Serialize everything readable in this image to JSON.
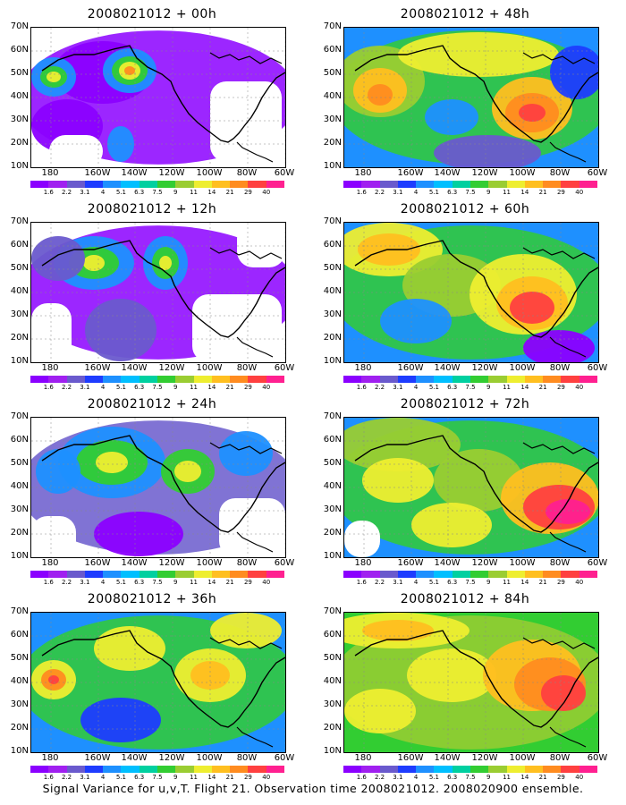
{
  "caption": "Signal Variance for u,v,T. Flight 21. Observation time 2008021012. 2008020900 ensemble.",
  "lat_labels": [
    "70N",
    "60N",
    "50N",
    "40N",
    "30N",
    "20N",
    "10N"
  ],
  "lon_labels": [
    "180",
    "160W",
    "140W",
    "120W",
    "100W",
    "80W",
    "60W"
  ],
  "colorbar": {
    "labels": [
      "1.6",
      "2.2",
      "3.1",
      "4",
      "5.1",
      "6.3",
      "7.5",
      "9",
      "11",
      "14",
      "21",
      "29",
      "40"
    ],
    "colors": [
      "#8b00ff",
      "#a020f0",
      "#6a5acd",
      "#1e3cff",
      "#1e90ff",
      "#00bfff",
      "#00d0a0",
      "#32cd32",
      "#9acd32",
      "#eeee30",
      "#ffbf20",
      "#ff8c20",
      "#ff4040",
      "#ff2090"
    ]
  },
  "panels": [
    {
      "title": "2008021012 + 00h"
    },
    {
      "title": "2008021012 + 48h"
    },
    {
      "title": "2008021012 + 12h"
    },
    {
      "title": "2008021012 + 60h"
    },
    {
      "title": "2008021012 + 24h"
    },
    {
      "title": "2008021012 + 72h"
    },
    {
      "title": "2008021012 + 36h"
    },
    {
      "title": "2008021012 + 84h"
    }
  ]
}
